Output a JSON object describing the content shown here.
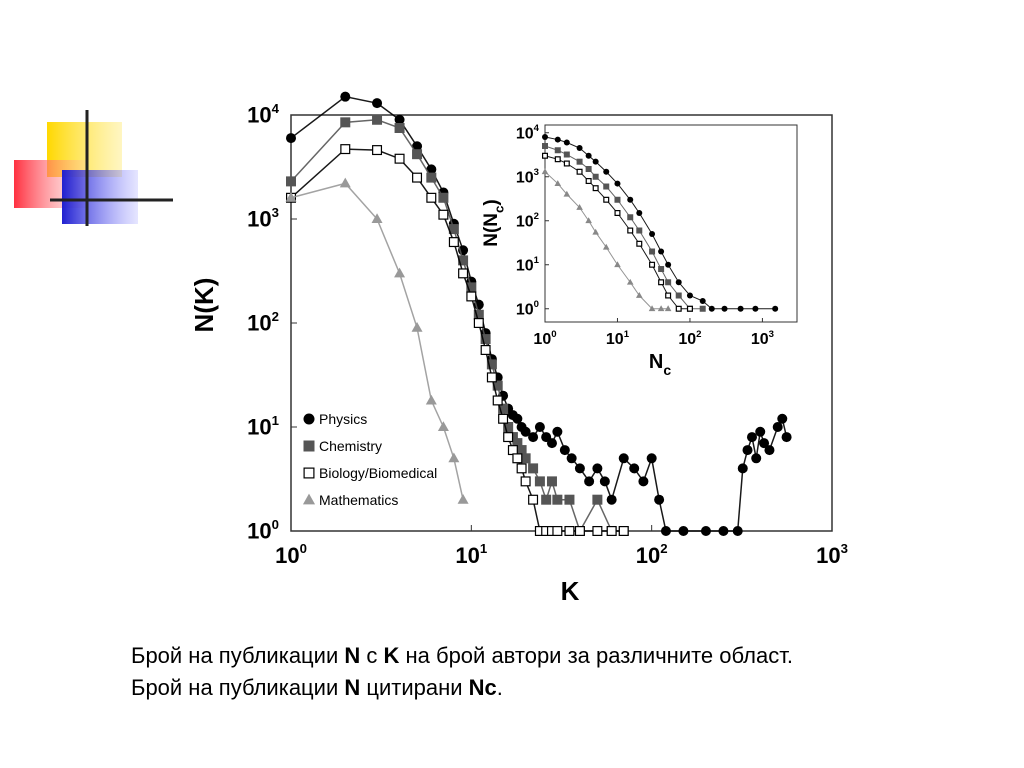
{
  "caption": {
    "line1": {
      "t1": "Брой на публикации ",
      "b1": "N",
      "t2": " с ",
      "b2": "K",
      "t3": " на брой автори за различните област."
    },
    "line2": {
      "t1": "Брой на публикации ",
      "b1": "N",
      "t2": " цитирани ",
      "b2": "Nc",
      "t3": "."
    }
  },
  "chart_data": [
    {
      "type": "scatter",
      "scale": "log-log",
      "xlabel": "K",
      "ylabel": "N(K)",
      "xlim": [
        1,
        1000
      ],
      "ylim": [
        1,
        10000
      ],
      "x_ticks": [
        {
          "base": "10",
          "exp": "0",
          "value": 1
        },
        {
          "base": "10",
          "exp": "1",
          "value": 10
        },
        {
          "base": "10",
          "exp": "2",
          "value": 100
        },
        {
          "base": "10",
          "exp": "3",
          "value": 1000
        }
      ],
      "y_ticks": [
        {
          "base": "10",
          "exp": "0",
          "value": 1
        },
        {
          "base": "10",
          "exp": "1",
          "value": 10
        },
        {
          "base": "10",
          "exp": "2",
          "value": 100
        },
        {
          "base": "10",
          "exp": "3",
          "value": 1000
        },
        {
          "base": "10",
          "exp": "4",
          "value": 10000
        }
      ],
      "legend": "bottom-left",
      "grid": false,
      "series": [
        {
          "name": "Physics",
          "marker": "circle",
          "color": "#000000",
          "x": [
            1,
            2,
            3,
            4,
            5,
            6,
            7,
            8,
            9,
            10,
            11,
            12,
            13,
            14,
            15,
            16,
            17,
            18,
            19,
            20,
            22,
            24,
            26,
            28,
            30,
            33,
            36,
            40,
            45,
            50,
            55,
            60,
            70,
            80,
            90,
            100,
            110,
            120,
            150,
            200,
            250,
            300,
            320,
            340,
            360,
            380,
            400,
            420,
            450,
            500,
            530,
            560
          ],
          "y": [
            6000,
            15000,
            13000,
            9000,
            5000,
            3000,
            1800,
            900,
            500,
            250,
            150,
            80,
            45,
            30,
            20,
            15,
            13,
            12,
            10,
            9,
            8,
            10,
            8,
            7,
            9,
            6,
            5,
            4,
            3,
            4,
            3,
            2,
            5,
            4,
            3,
            5,
            2,
            1,
            1,
            1,
            1,
            1,
            4,
            6,
            8,
            5,
            9,
            7,
            6,
            10,
            12,
            8
          ]
        },
        {
          "name": "Chemistry",
          "marker": "square",
          "color": "#555555",
          "x": [
            1,
            2,
            3,
            4,
            5,
            6,
            7,
            8,
            9,
            10,
            11,
            12,
            13,
            14,
            15,
            16,
            17,
            18,
            19,
            20,
            22,
            24,
            26,
            28,
            30,
            35,
            40,
            50,
            60,
            70
          ],
          "y": [
            2300,
            8500,
            9000,
            7500,
            4200,
            2500,
            1600,
            800,
            400,
            220,
            120,
            70,
            40,
            25,
            15,
            10,
            8,
            7,
            6,
            5,
            4,
            3,
            2,
            3,
            2,
            2,
            1,
            2,
            1,
            1
          ]
        },
        {
          "name": "Biology/Biomedical",
          "marker": "square-open",
          "color": "#000000",
          "x": [
            1,
            2,
            3,
            4,
            5,
            6,
            7,
            8,
            9,
            10,
            11,
            12,
            13,
            14,
            15,
            16,
            17,
            18,
            19,
            20,
            22,
            24,
            26,
            28,
            30,
            35,
            40,
            50,
            60,
            70
          ],
          "y": [
            1600,
            4700,
            4600,
            3800,
            2500,
            1600,
            1100,
            600,
            300,
            180,
            100,
            55,
            30,
            18,
            12,
            8,
            6,
            5,
            4,
            3,
            2,
            1,
            1,
            1,
            1,
            1,
            1,
            1,
            1,
            1
          ]
        },
        {
          "name": "Mathematics",
          "marker": "triangle",
          "color": "#999999",
          "x": [
            1,
            2,
            3,
            4,
            5,
            6,
            7,
            8,
            9
          ],
          "y": [
            1600,
            2200,
            1000,
            300,
            90,
            18,
            10,
            5,
            2
          ]
        }
      ]
    },
    {
      "type": "scatter",
      "scale": "log-log",
      "inset": true,
      "xlabel": "Nc",
      "ylabel": "N(Nc)",
      "xlim": [
        1,
        3000
      ],
      "ylim": [
        0.5,
        15000
      ],
      "x_ticks": [
        {
          "base": "10",
          "exp": "0",
          "value": 1
        },
        {
          "base": "10",
          "exp": "1",
          "value": 10
        },
        {
          "base": "10",
          "exp": "2",
          "value": 100
        },
        {
          "base": "10",
          "exp": "3",
          "value": 1000
        }
      ],
      "y_ticks": [
        {
          "base": "10",
          "exp": "0",
          "value": 1
        },
        {
          "base": "10",
          "exp": "1",
          "value": 10
        },
        {
          "base": "10",
          "exp": "2",
          "value": 100
        },
        {
          "base": "10",
          "exp": "3",
          "value": 1000
        },
        {
          "base": "10",
          "exp": "4",
          "value": 10000
        }
      ],
      "series": [
        {
          "name": "Physics",
          "marker": "circle",
          "color": "#000000",
          "x": [
            1,
            1.5,
            2,
            3,
            4,
            5,
            7,
            10,
            15,
            20,
            30,
            40,
            50,
            70,
            100,
            150,
            200,
            300,
            500,
            800,
            1500
          ],
          "y": [
            8000,
            7000,
            6000,
            4500,
            3000,
            2200,
            1300,
            700,
            300,
            150,
            50,
            20,
            10,
            4,
            2,
            1.5,
            1,
            1,
            1,
            1,
            1
          ]
        },
        {
          "name": "Chemistry",
          "marker": "square",
          "color": "#555555",
          "x": [
            1,
            1.5,
            2,
            3,
            4,
            5,
            7,
            10,
            15,
            20,
            30,
            40,
            50,
            70,
            100,
            150
          ],
          "y": [
            5000,
            4000,
            3200,
            2200,
            1500,
            1000,
            600,
            300,
            120,
            60,
            20,
            8,
            4,
            2,
            1,
            1
          ]
        },
        {
          "name": "Biology/Biomedical",
          "marker": "square-open",
          "color": "#000000",
          "x": [
            1,
            1.5,
            2,
            3,
            4,
            5,
            7,
            10,
            15,
            20,
            30,
            40,
            50,
            70,
            100
          ],
          "y": [
            3000,
            2500,
            2000,
            1300,
            800,
            550,
            300,
            150,
            60,
            30,
            10,
            4,
            2,
            1,
            1
          ]
        },
        {
          "name": "Mathematics",
          "marker": "triangle",
          "color": "#888888",
          "x": [
            1,
            1.5,
            2,
            3,
            4,
            5,
            7,
            10,
            15,
            20,
            30,
            40,
            50
          ],
          "y": [
            1300,
            700,
            400,
            200,
            100,
            55,
            25,
            10,
            4,
            2,
            1,
            1,
            1
          ]
        }
      ]
    }
  ]
}
